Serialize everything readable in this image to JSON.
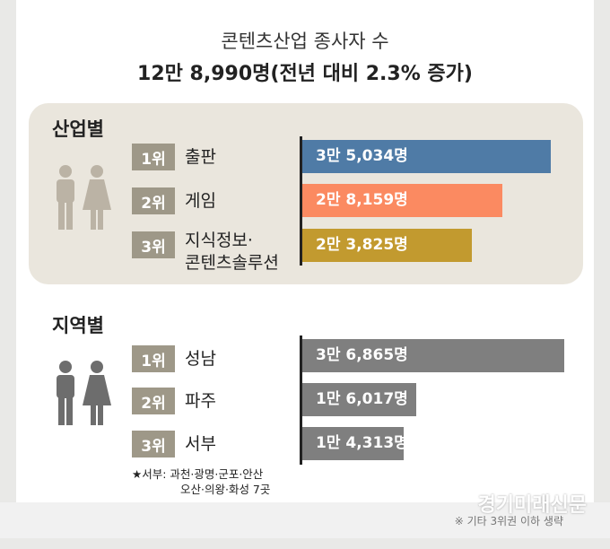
{
  "title": "콘텐츠산업 종사자 수",
  "subtitle": "12만 8,990명(전년 대비 2.3% 증가)",
  "colors": {
    "industry_bars": [
      "#4f7ba6",
      "#fb8a61",
      "#c29a2f"
    ],
    "region_bar": "#7f7f7f",
    "panel_bg": "#eae6dd",
    "badge": "#9e9888",
    "people_icon": "#bbb3a5",
    "people_icon_region": "#6d6d6d"
  },
  "chart_data": [
    {
      "type": "bar",
      "orientation": "horizontal",
      "title": "산업별",
      "ranks": [
        "1위",
        "2위",
        "3위"
      ],
      "categories": [
        "출판",
        "게임",
        "지식정보·\n콘텐츠솔루션"
      ],
      "category_lines": [
        [
          "출판"
        ],
        [
          "게임"
        ],
        [
          "지식정보·",
          "콘텐츠솔루션"
        ]
      ],
      "values": [
        35034,
        28159,
        23825
      ],
      "value_labels": [
        "3만 5,034명",
        "2만 8,159명",
        "2만 3,825명"
      ]
    },
    {
      "type": "bar",
      "orientation": "horizontal",
      "title": "지역별",
      "ranks": [
        "1위",
        "2위",
        "3위"
      ],
      "categories": [
        "성남",
        "파주",
        "서부"
      ],
      "category_lines": [
        [
          "성남"
        ],
        [
          "파주"
        ],
        [
          "서부"
        ]
      ],
      "values": [
        36865,
        16017,
        14313
      ],
      "value_labels": [
        "3만 6,865명",
        "1만 6,017명",
        "1만 4,313명"
      ]
    }
  ],
  "footnote": {
    "line1": "★서부: 과천·광명·군포·안산",
    "line2": "오산·의왕·화성 7곳"
  },
  "source": "※ 기타 3위권 이하 생략",
  "watermark": "경기미래신문"
}
